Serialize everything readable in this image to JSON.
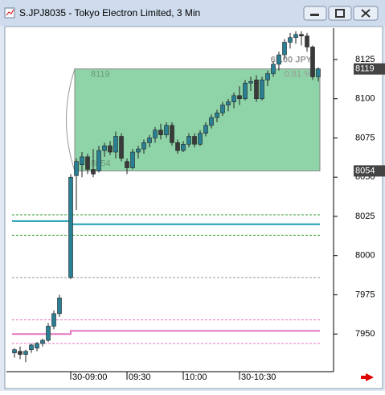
{
  "window": {
    "title": "S.JPJ8035 - Tokyo Electron Limited, 3 Min"
  },
  "chart_data": {
    "type": "candlestick",
    "categories": [
      null,
      null,
      null,
      null,
      null,
      null,
      null,
      null,
      null,
      null,
      "30-09:00",
      null,
      null,
      null,
      null,
      null,
      null,
      null,
      null,
      null,
      "09:30",
      null,
      null,
      null,
      null,
      null,
      null,
      null,
      null,
      null,
      "10:00",
      null,
      null,
      null,
      null,
      null,
      null,
      null,
      null,
      null,
      "30-10:30",
      null,
      null,
      null,
      null,
      null,
      null,
      null,
      null,
      null,
      null,
      null,
      null,
      null,
      null
    ],
    "open": [
      7938,
      7939,
      7937,
      7940,
      7941,
      7944,
      7946,
      7955,
      7963,
      null,
      7986,
      8051,
      8058,
      8063,
      8055,
      8054,
      8067,
      8070,
      8066,
      8076,
      8060,
      8056,
      8066,
      8068,
      8072,
      8075,
      8080,
      8077,
      8083,
      8072,
      8067,
      8071,
      8076,
      8071,
      8078,
      8083,
      8088,
      8091,
      8096,
      8098,
      8102,
      8100,
      8110,
      8112,
      8100,
      8112,
      8116,
      8122,
      8128,
      8136,
      8139,
      8141,
      8140,
      8133,
      8114
    ],
    "high": [
      7941,
      7942,
      7940,
      7944,
      7945,
      7947,
      7957,
      7965,
      7975,
      null,
      8052,
      8062,
      8066,
      8065,
      8068,
      8070,
      8072,
      8073,
      8079,
      8078,
      8062,
      8068,
      8070,
      8074,
      8077,
      8082,
      8084,
      8085,
      8085,
      8074,
      8073,
      8078,
      8078,
      8080,
      8085,
      8090,
      8093,
      8098,
      8100,
      8104,
      8108,
      8112,
      8114,
      8115,
      8114,
      8118,
      8124,
      8130,
      8138,
      8142,
      8143,
      8143,
      8142,
      8134,
      8120
    ],
    "low": [
      7935,
      7934,
      7932,
      7938,
      7939,
      7942,
      7945,
      7953,
      7961,
      null,
      7985,
      8029,
      8050,
      8052,
      8050,
      8053,
      8063,
      8064,
      8062,
      8060,
      8052,
      8055,
      8062,
      8065,
      8069,
      8072,
      8074,
      8075,
      8070,
      8065,
      8066,
      8069,
      8069,
      8070,
      8076,
      8081,
      8085,
      8089,
      8092,
      8094,
      8096,
      8099,
      8105,
      8098,
      8099,
      8108,
      8114,
      8118,
      8125,
      8132,
      8135,
      8134,
      8130,
      8112,
      8111
    ],
    "close": [
      7940,
      7937,
      7939,
      7943,
      7944,
      7946,
      7955,
      7963,
      7973,
      null,
      8050,
      8060,
      8063,
      8055,
      8052,
      8067,
      8070,
      8066,
      8076,
      8062,
      8056,
      8066,
      8068,
      8072,
      8075,
      8080,
      8077,
      8083,
      8072,
      8067,
      8071,
      8076,
      8071,
      8078,
      8083,
      8088,
      8091,
      8096,
      8098,
      8102,
      8100,
      8110,
      8111,
      8100,
      8112,
      8116,
      8122,
      8128,
      8136,
      8139,
      8141,
      8140,
      8133,
      8114,
      8119
    ],
    "up_color": "#2b7f94",
    "down_color": "#3a3a3a",
    "ylim": [
      7926,
      8145
    ],
    "yticks": [
      7950,
      7975,
      8000,
      8025,
      8050,
      8075,
      8100,
      8125
    ],
    "price_tags": [
      8119,
      8054
    ],
    "box": {
      "high": 8119,
      "low": 8054,
      "change": "65.00 JPY",
      "percent": "0.81 %",
      "color": "#8fd4a8"
    },
    "levels": [
      {
        "values": [
          8026,
          8026
        ],
        "color": "#2ca02c",
        "dash": true
      },
      {
        "values": [
          8022,
          8020
        ],
        "color": "#1a9fb0",
        "dash": false
      },
      {
        "values": [
          8013,
          8013
        ],
        "color": "#2ca02c",
        "dash": true
      },
      {
        "values": [
          7986,
          7986
        ],
        "color": "#999999",
        "dash": true
      },
      {
        "values": [
          7959,
          7959
        ],
        "color": "#e377c2",
        "dash": true
      },
      {
        "values": [
          7950,
          7952
        ],
        "color": "#e377c2",
        "dash": false
      },
      {
        "values": [
          7944,
          7944
        ],
        "color": "#e377c2",
        "dash": true
      }
    ]
  }
}
